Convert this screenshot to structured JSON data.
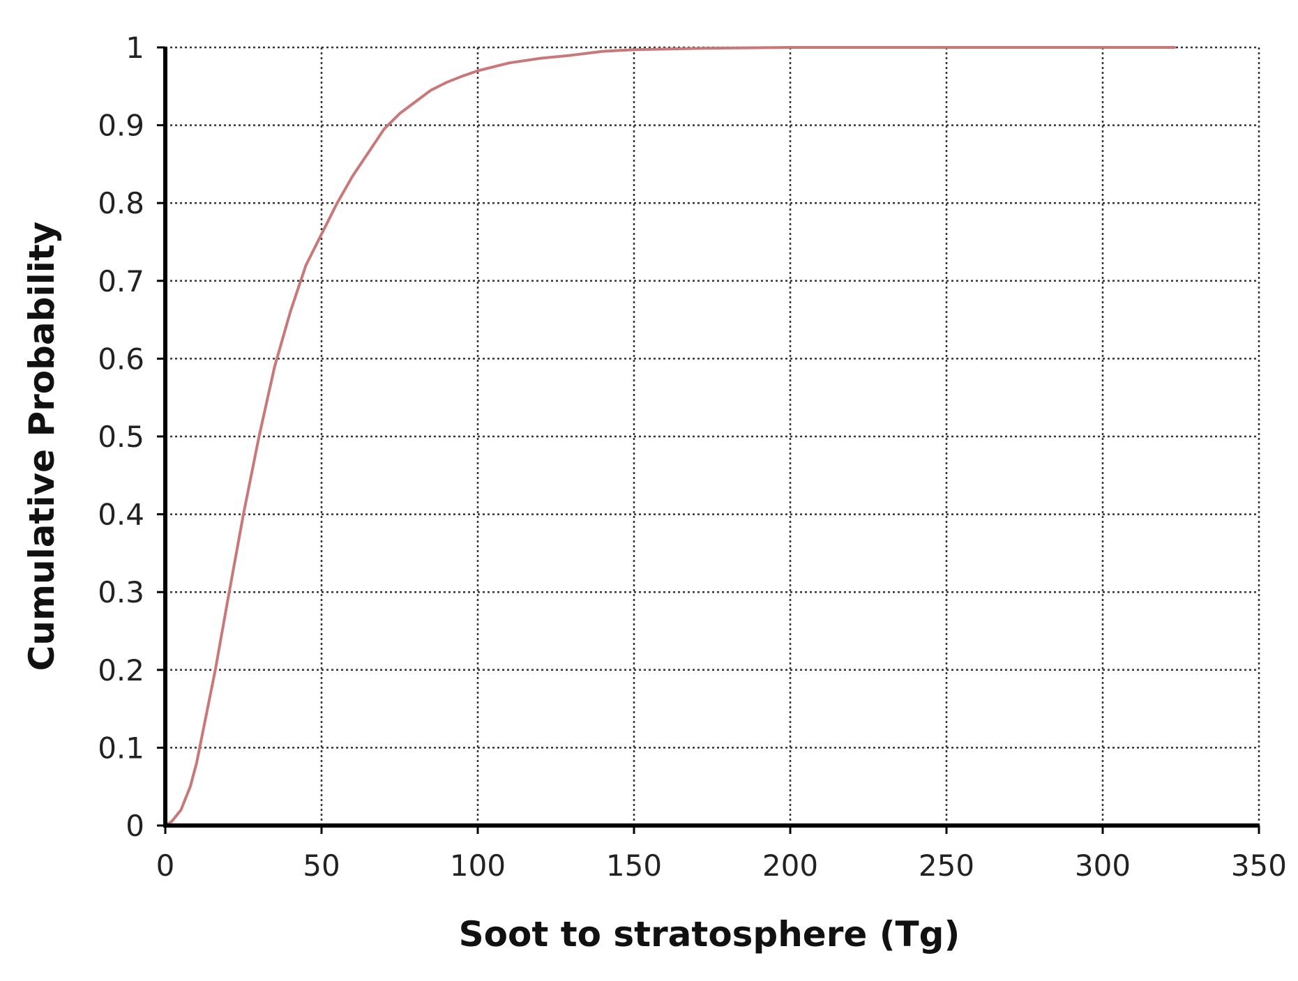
{
  "chart_data": {
    "type": "line",
    "title": "",
    "xlabel": "Soot to stratosphere (Tg)",
    "ylabel": "Cumulative Probability",
    "xlim": [
      0,
      350
    ],
    "ylim": [
      0,
      1
    ],
    "xticks": [
      0,
      50,
      100,
      150,
      200,
      250,
      300,
      350
    ],
    "yticks": [
      0,
      0.1,
      0.2,
      0.3,
      0.4,
      0.5,
      0.6,
      0.7,
      0.8,
      0.9,
      1
    ],
    "xtick_labels": [
      "0",
      "50",
      "100",
      "150",
      "200",
      "250",
      "300",
      "350"
    ],
    "ytick_labels": [
      "0",
      "0.1",
      "0.2",
      "0.3",
      "0.4",
      "0.5",
      "0.6",
      "0.7",
      "0.8",
      "0.9",
      "1"
    ],
    "grid": true,
    "legend": "none",
    "series": [
      {
        "color": "#c87878",
        "x": [
          0,
          2,
          5,
          8,
          10,
          13,
          16,
          20,
          25,
          30,
          35,
          40,
          45,
          50,
          55,
          60,
          65,
          70,
          75,
          80,
          85,
          90,
          95,
          100,
          110,
          120,
          130,
          140,
          150,
          175,
          200,
          250,
          300,
          323
        ],
        "y": [
          0,
          0.005,
          0.02,
          0.05,
          0.08,
          0.14,
          0.2,
          0.29,
          0.4,
          0.5,
          0.59,
          0.66,
          0.72,
          0.76,
          0.8,
          0.835,
          0.865,
          0.895,
          0.915,
          0.93,
          0.945,
          0.955,
          0.963,
          0.97,
          0.98,
          0.986,
          0.99,
          0.995,
          0.997,
          0.999,
          1.0,
          1.0,
          1.0,
          1.0
        ]
      }
    ]
  }
}
